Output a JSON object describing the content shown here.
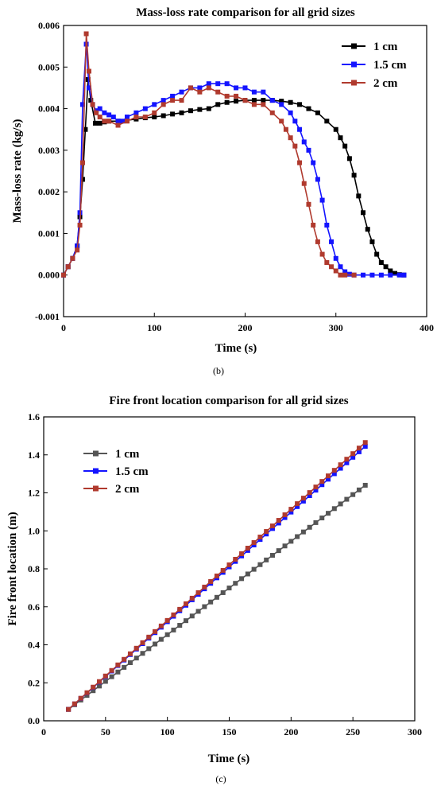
{
  "chart_data": [
    {
      "type": "line",
      "title": "Mass-loss rate comparison for all grid sizes",
      "xlabel": "Time (s)",
      "ylabel": "Mass-loss rate (kg/s)",
      "xlim": [
        0,
        400
      ],
      "ylim": [
        -0.001,
        0.006
      ],
      "xticks": [
        0,
        100,
        200,
        300,
        400
      ],
      "yticks": [
        -0.001,
        0.0,
        0.001,
        0.002,
        0.003,
        0.004,
        0.005,
        0.006
      ],
      "xtick_labels": [
        "0",
        "100",
        "200",
        "300",
        "400"
      ],
      "ytick_labels": [
        "-0.001",
        "0.000",
        "0.001",
        "0.002",
        "0.003",
        "0.004",
        "0.005",
        "0.006"
      ],
      "legend_position": "top-right",
      "caption": "(b)",
      "series": [
        {
          "name": "1 cm",
          "color": "#000000",
          "marker": "square",
          "points": [
            [
              0,
              0
            ],
            [
              5,
              0.0002
            ],
            [
              10,
              0.0004
            ],
            [
              15,
              0.0007
            ],
            [
              18,
              0.0014
            ],
            [
              21,
              0.0023
            ],
            [
              24,
              0.0035
            ],
            [
              27,
              0.0047
            ],
            [
              30,
              0.0042
            ],
            [
              35,
              0.00365
            ],
            [
              40,
              0.00365
            ],
            [
              45,
              0.00368
            ],
            [
              50,
              0.0037
            ],
            [
              60,
              0.0037
            ],
            [
              70,
              0.00372
            ],
            [
              80,
              0.00375
            ],
            [
              90,
              0.00378
            ],
            [
              100,
              0.0038
            ],
            [
              110,
              0.00383
            ],
            [
              120,
              0.00387
            ],
            [
              130,
              0.0039
            ],
            [
              140,
              0.00395
            ],
            [
              150,
              0.00398
            ],
            [
              160,
              0.004
            ],
            [
              170,
              0.0041
            ],
            [
              180,
              0.00415
            ],
            [
              190,
              0.00418
            ],
            [
              200,
              0.0042
            ],
            [
              210,
              0.0042
            ],
            [
              220,
              0.0042
            ],
            [
              230,
              0.0042
            ],
            [
              240,
              0.00418
            ],
            [
              250,
              0.00415
            ],
            [
              260,
              0.0041
            ],
            [
              270,
              0.004
            ],
            [
              280,
              0.0039
            ],
            [
              290,
              0.0037
            ],
            [
              300,
              0.0035
            ],
            [
              305,
              0.0033
            ],
            [
              310,
              0.0031
            ],
            [
              315,
              0.0028
            ],
            [
              320,
              0.0024
            ],
            [
              325,
              0.0019
            ],
            [
              330,
              0.0015
            ],
            [
              335,
              0.0011
            ],
            [
              340,
              0.0008
            ],
            [
              345,
              0.0005
            ],
            [
              350,
              0.0003
            ],
            [
              355,
              0.0002
            ],
            [
              360,
              0.0001
            ],
            [
              365,
              4e-05
            ],
            [
              370,
              1e-05
            ],
            [
              375,
              0
            ]
          ]
        },
        {
          "name": "1.5 cm",
          "color": "#1414ff",
          "marker": "square",
          "points": [
            [
              0,
              0
            ],
            [
              5,
              0.0002
            ],
            [
              10,
              0.0004
            ],
            [
              15,
              0.0007
            ],
            [
              18,
              0.0015
            ],
            [
              21,
              0.0041
            ],
            [
              25,
              0.00555
            ],
            [
              28,
              0.0045
            ],
            [
              32,
              0.0041
            ],
            [
              36,
              0.00395
            ],
            [
              40,
              0.004
            ],
            [
              45,
              0.0039
            ],
            [
              50,
              0.00385
            ],
            [
              55,
              0.0038
            ],
            [
              60,
              0.0037
            ],
            [
              65,
              0.0037
            ],
            [
              70,
              0.0038
            ],
            [
              80,
              0.0039
            ],
            [
              90,
              0.004
            ],
            [
              100,
              0.0041
            ],
            [
              110,
              0.0042
            ],
            [
              120,
              0.0043
            ],
            [
              130,
              0.0044
            ],
            [
              140,
              0.0045
            ],
            [
              150,
              0.0045
            ],
            [
              160,
              0.0046
            ],
            [
              170,
              0.0046
            ],
            [
              180,
              0.0046
            ],
            [
              190,
              0.0045
            ],
            [
              200,
              0.0045
            ],
            [
              210,
              0.0044
            ],
            [
              220,
              0.0044
            ],
            [
              230,
              0.0042
            ],
            [
              240,
              0.0041
            ],
            [
              250,
              0.0039
            ],
            [
              255,
              0.0037
            ],
            [
              260,
              0.0035
            ],
            [
              265,
              0.0032
            ],
            [
              270,
              0.003
            ],
            [
              275,
              0.0027
            ],
            [
              280,
              0.0023
            ],
            [
              285,
              0.0018
            ],
            [
              290,
              0.0012
            ],
            [
              295,
              0.0008
            ],
            [
              300,
              0.0004
            ],
            [
              305,
              0.0002
            ],
            [
              310,
              8e-05
            ],
            [
              315,
              2e-05
            ],
            [
              320,
              0
            ],
            [
              330,
              0
            ],
            [
              340,
              0
            ],
            [
              350,
              0
            ],
            [
              360,
              0
            ],
            [
              370,
              0
            ],
            [
              375,
              0
            ]
          ]
        },
        {
          "name": "2 cm",
          "color": "#b03a2e",
          "marker": "square",
          "points": [
            [
              0,
              0
            ],
            [
              5,
              0.0002
            ],
            [
              10,
              0.0004
            ],
            [
              15,
              0.0006
            ],
            [
              18,
              0.0012
            ],
            [
              21,
              0.0027
            ],
            [
              25,
              0.0058
            ],
            [
              28,
              0.0049
            ],
            [
              32,
              0.0041
            ],
            [
              36,
              0.0039
            ],
            [
              40,
              0.0038
            ],
            [
              45,
              0.0037
            ],
            [
              50,
              0.0037
            ],
            [
              60,
              0.0036
            ],
            [
              70,
              0.0037
            ],
            [
              80,
              0.0038
            ],
            [
              90,
              0.0038
            ],
            [
              100,
              0.0039
            ],
            [
              110,
              0.0041
            ],
            [
              120,
              0.0042
            ],
            [
              130,
              0.0042
            ],
            [
              140,
              0.0045
            ],
            [
              150,
              0.0044
            ],
            [
              160,
              0.0045
            ],
            [
              170,
              0.0044
            ],
            [
              180,
              0.0043
            ],
            [
              190,
              0.0043
            ],
            [
              200,
              0.0042
            ],
            [
              210,
              0.0041
            ],
            [
              220,
              0.0041
            ],
            [
              230,
              0.0039
            ],
            [
              240,
              0.0037
            ],
            [
              245,
              0.0035
            ],
            [
              250,
              0.0033
            ],
            [
              255,
              0.0031
            ],
            [
              260,
              0.0027
            ],
            [
              265,
              0.0022
            ],
            [
              270,
              0.0017
            ],
            [
              275,
              0.0012
            ],
            [
              280,
              0.0008
            ],
            [
              285,
              0.0005
            ],
            [
              290,
              0.0003
            ],
            [
              295,
              0.0002
            ],
            [
              300,
              0.0001
            ],
            [
              305,
              0
            ],
            [
              310,
              0
            ],
            [
              320,
              0
            ]
          ]
        }
      ]
    },
    {
      "type": "line",
      "title": "Fire front location comparison for all grid sizes",
      "xlabel": "Time (s)",
      "ylabel": "Fire front location (m)",
      "xlim": [
        0,
        300
      ],
      "ylim": [
        0.0,
        1.6
      ],
      "xticks": [
        0,
        50,
        100,
        150,
        200,
        250,
        300
      ],
      "yticks": [
        0.0,
        0.2,
        0.4,
        0.6,
        0.8,
        1.0,
        1.2,
        1.4,
        1.6
      ],
      "xtick_labels": [
        "0",
        "50",
        "100",
        "150",
        "200",
        "250",
        "300"
      ],
      "ytick_labels": [
        "0.0",
        "0.2",
        "0.4",
        "0.6",
        "0.8",
        "1.0",
        "1.2",
        "1.4",
        "1.6"
      ],
      "legend_position": "top-left",
      "caption": "(c)",
      "series": [
        {
          "name": "1 cm",
          "color": "#555555",
          "marker": "square",
          "x_start": 20,
          "x_end": 260,
          "x_step": 5,
          "y_start": 0.06,
          "y_end": 1.24
        },
        {
          "name": "1.5 cm",
          "color": "#1414ff",
          "marker": "square",
          "x_start": 20,
          "x_end": 260,
          "x_step": 5,
          "y_start": 0.06,
          "y_end": 1.445
        },
        {
          "name": "2 cm",
          "color": "#b03a2e",
          "marker": "square",
          "x_start": 20,
          "x_end": 260,
          "x_step": 5,
          "y_start": 0.06,
          "y_end": 1.465
        }
      ]
    }
  ]
}
